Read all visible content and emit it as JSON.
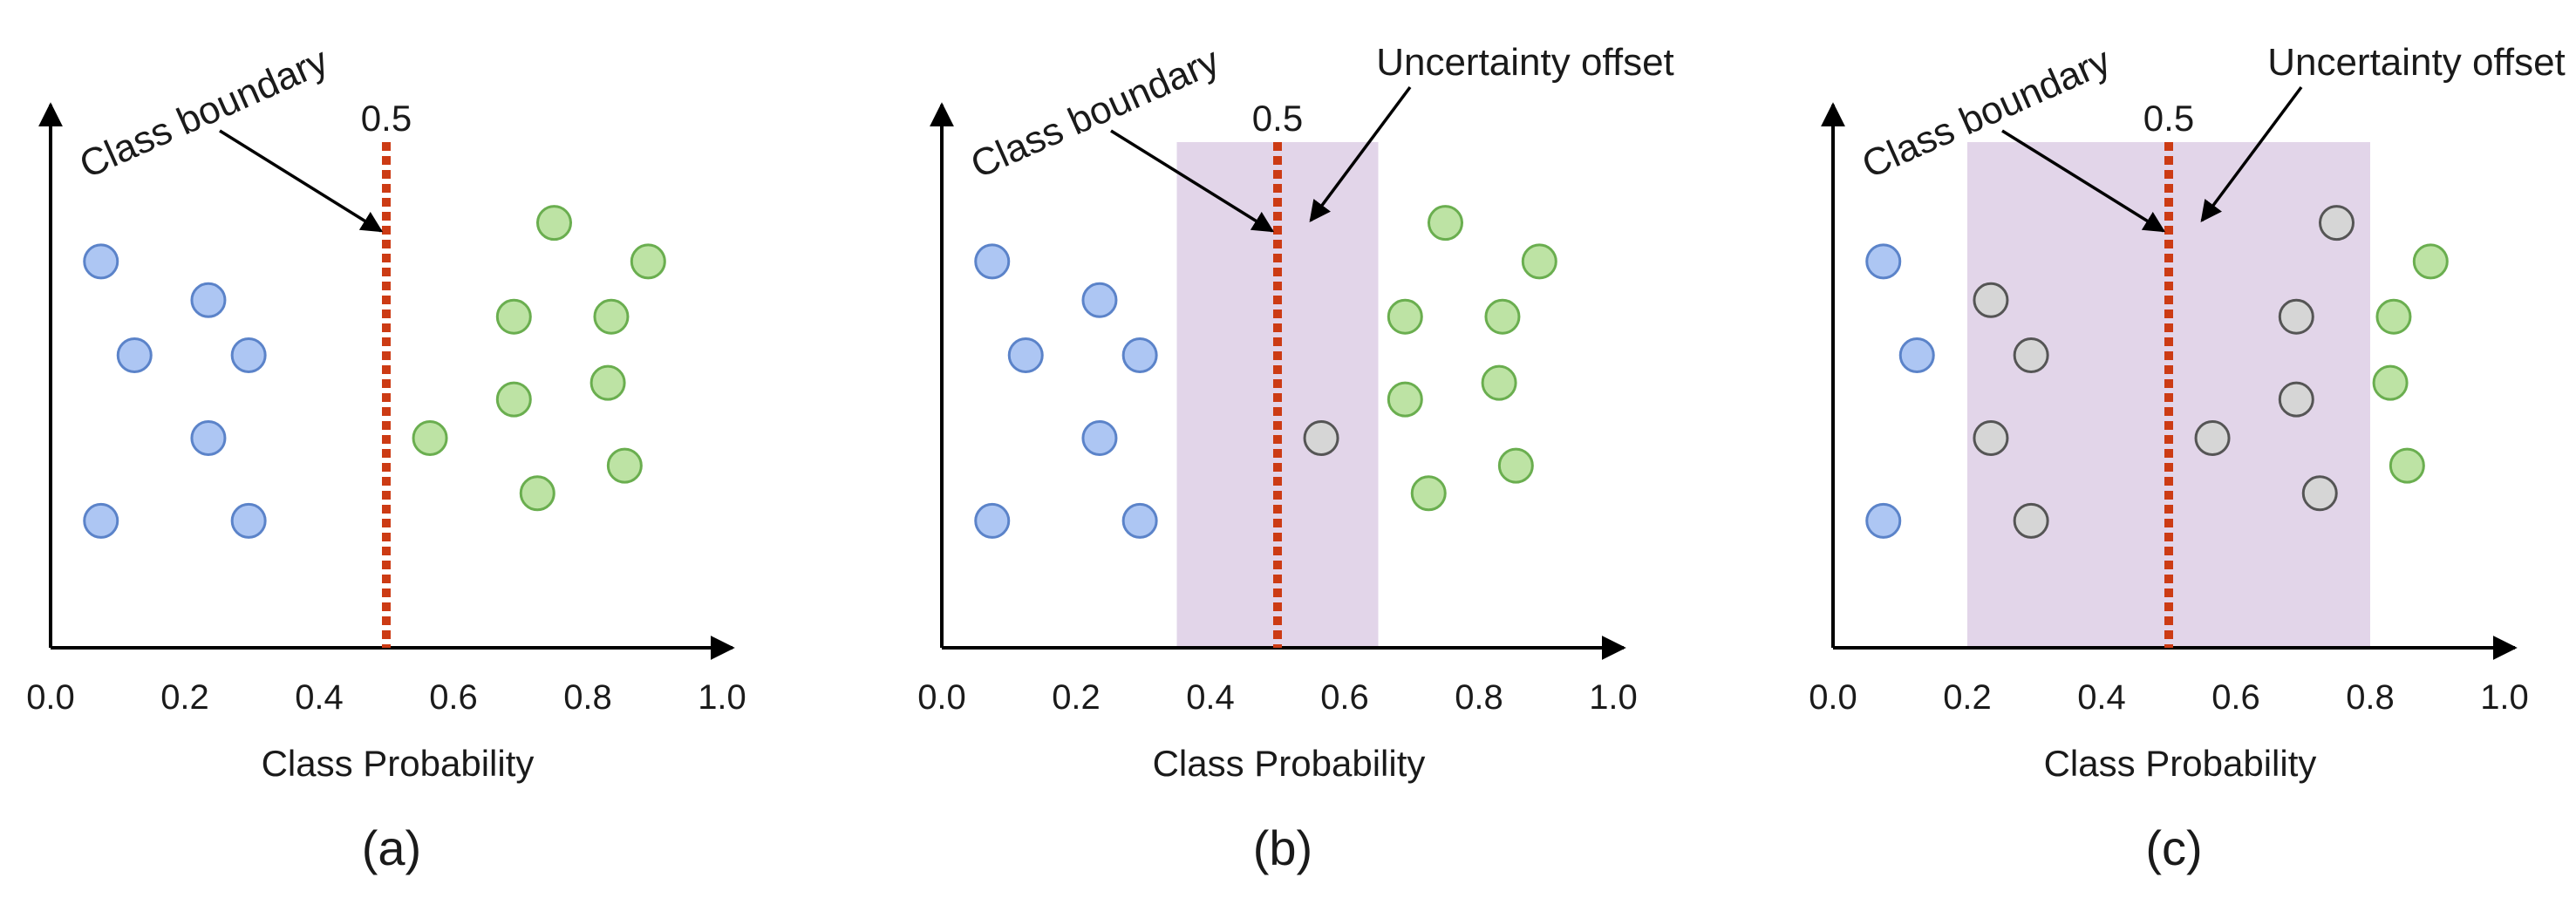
{
  "colors": {
    "class_a_fill": "#adc6f3",
    "class_a_stroke": "#5b83c9",
    "class_b_fill": "#bde3a4",
    "class_b_stroke": "#6aae4f",
    "uncertain_fill": "#d6d6d6",
    "uncertain_stroke": "#555555",
    "boundary": "#cc3b14",
    "band": "#e2d5e9"
  },
  "chart_data": [
    {
      "type": "scatter",
      "caption": "(a)",
      "xlabel": "Class Probability",
      "xlim": [
        0.0,
        1.0
      ],
      "xticks": [
        "0.0",
        "0.2",
        "0.4",
        "0.6",
        "0.8",
        "1.0"
      ],
      "threshold": 0.5,
      "threshold_label": "0.5",
      "boundary_annotation": "Class boundary",
      "offset_annotation": "",
      "uncertainty_band": null,
      "points": [
        {
          "x": 0.075,
          "y": 0.7,
          "cls": "a"
        },
        {
          "x": 0.235,
          "y": 0.63,
          "cls": "a"
        },
        {
          "x": 0.125,
          "y": 0.53,
          "cls": "a"
        },
        {
          "x": 0.295,
          "y": 0.53,
          "cls": "a"
        },
        {
          "x": 0.235,
          "y": 0.38,
          "cls": "a"
        },
        {
          "x": 0.075,
          "y": 0.23,
          "cls": "a"
        },
        {
          "x": 0.295,
          "y": 0.23,
          "cls": "a"
        },
        {
          "x": 0.565,
          "y": 0.38,
          "cls": "b"
        },
        {
          "x": 0.75,
          "y": 0.77,
          "cls": "b"
        },
        {
          "x": 0.89,
          "y": 0.7,
          "cls": "b"
        },
        {
          "x": 0.69,
          "y": 0.6,
          "cls": "b"
        },
        {
          "x": 0.835,
          "y": 0.6,
          "cls": "b"
        },
        {
          "x": 0.69,
          "y": 0.45,
          "cls": "b"
        },
        {
          "x": 0.83,
          "y": 0.48,
          "cls": "b"
        },
        {
          "x": 0.855,
          "y": 0.33,
          "cls": "b"
        },
        {
          "x": 0.725,
          "y": 0.28,
          "cls": "b"
        }
      ]
    },
    {
      "type": "scatter",
      "caption": "(b)",
      "xlabel": "Class Probability",
      "xlim": [
        0.0,
        1.0
      ],
      "xticks": [
        "0.0",
        "0.2",
        "0.4",
        "0.6",
        "0.8",
        "1.0"
      ],
      "threshold": 0.5,
      "threshold_label": "0.5",
      "boundary_annotation": "Class boundary",
      "offset_annotation": "Uncertainty offset",
      "uncertainty_band": [
        0.35,
        0.65
      ],
      "points": [
        {
          "x": 0.075,
          "y": 0.7,
          "cls": "a"
        },
        {
          "x": 0.235,
          "y": 0.63,
          "cls": "a"
        },
        {
          "x": 0.125,
          "y": 0.53,
          "cls": "a"
        },
        {
          "x": 0.295,
          "y": 0.53,
          "cls": "a"
        },
        {
          "x": 0.235,
          "y": 0.38,
          "cls": "a"
        },
        {
          "x": 0.075,
          "y": 0.23,
          "cls": "a"
        },
        {
          "x": 0.295,
          "y": 0.23,
          "cls": "a"
        },
        {
          "x": 0.565,
          "y": 0.38,
          "cls": "u"
        },
        {
          "x": 0.75,
          "y": 0.77,
          "cls": "b"
        },
        {
          "x": 0.89,
          "y": 0.7,
          "cls": "b"
        },
        {
          "x": 0.69,
          "y": 0.6,
          "cls": "b"
        },
        {
          "x": 0.835,
          "y": 0.6,
          "cls": "b"
        },
        {
          "x": 0.69,
          "y": 0.45,
          "cls": "b"
        },
        {
          "x": 0.83,
          "y": 0.48,
          "cls": "b"
        },
        {
          "x": 0.855,
          "y": 0.33,
          "cls": "b"
        },
        {
          "x": 0.725,
          "y": 0.28,
          "cls": "b"
        }
      ]
    },
    {
      "type": "scatter",
      "caption": "(c)",
      "xlabel": "Class Probability",
      "xlim": [
        0.0,
        1.0
      ],
      "xticks": [
        "0.0",
        "0.2",
        "0.4",
        "0.6",
        "0.8",
        "1.0"
      ],
      "threshold": 0.5,
      "threshold_label": "0.5",
      "boundary_annotation": "Class boundary",
      "offset_annotation": "Uncertainty offset",
      "uncertainty_band": [
        0.2,
        0.8
      ],
      "points": [
        {
          "x": 0.075,
          "y": 0.7,
          "cls": "a"
        },
        {
          "x": 0.235,
          "y": 0.63,
          "cls": "u"
        },
        {
          "x": 0.125,
          "y": 0.53,
          "cls": "a"
        },
        {
          "x": 0.295,
          "y": 0.53,
          "cls": "u"
        },
        {
          "x": 0.235,
          "y": 0.38,
          "cls": "u"
        },
        {
          "x": 0.075,
          "y": 0.23,
          "cls": "a"
        },
        {
          "x": 0.295,
          "y": 0.23,
          "cls": "u"
        },
        {
          "x": 0.565,
          "y": 0.38,
          "cls": "u"
        },
        {
          "x": 0.75,
          "y": 0.77,
          "cls": "u"
        },
        {
          "x": 0.89,
          "y": 0.7,
          "cls": "b"
        },
        {
          "x": 0.69,
          "y": 0.6,
          "cls": "u"
        },
        {
          "x": 0.835,
          "y": 0.6,
          "cls": "b"
        },
        {
          "x": 0.69,
          "y": 0.45,
          "cls": "u"
        },
        {
          "x": 0.83,
          "y": 0.48,
          "cls": "b"
        },
        {
          "x": 0.855,
          "y": 0.33,
          "cls": "b"
        },
        {
          "x": 0.725,
          "y": 0.28,
          "cls": "u"
        }
      ]
    }
  ]
}
